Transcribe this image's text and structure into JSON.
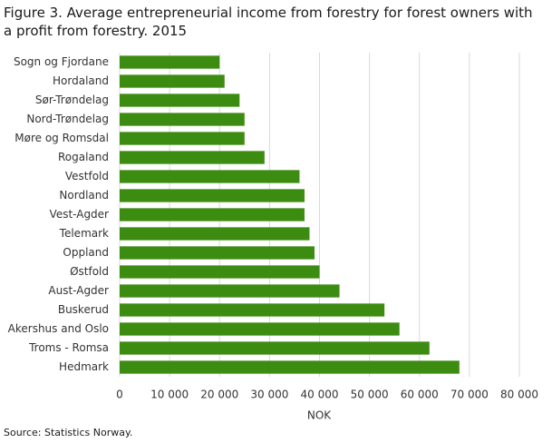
{
  "chart_data": {
    "type": "barh",
    "title": "Figure 3. Average entrepreneurial income from forestry for forest owners with a profit from forestry. 2015",
    "categories": [
      "Sogn og Fjordane",
      "Hordaland",
      "Sør-Trøndelag",
      "Nord-Trøndelag",
      "Møre og Romsdal",
      "Rogaland",
      "Vestfold",
      "Nordland",
      "Vest-Agder",
      "Telemark",
      "Oppland",
      "Østfold",
      "Aust-Agder",
      "Buskerud",
      "Akershus and Oslo",
      "Troms - Romsa",
      "Hedmark"
    ],
    "values": [
      20000,
      21000,
      24000,
      25000,
      25000,
      29000,
      36000,
      37000,
      37000,
      38000,
      39000,
      40000,
      44000,
      53000,
      56000,
      62000,
      68000
    ],
    "color": "#3d8c12",
    "xlim": [
      0,
      80000
    ],
    "xticks": [
      0,
      {
        "value": 10000,
        "label": "10 000"
      },
      {
        "value": 20000,
        "label": "20 000"
      },
      {
        "value": 30000,
        "label": "30 000"
      },
      {
        "value": 40000,
        "label": "40 000"
      },
      {
        "value": 50000,
        "label": "50 000"
      },
      {
        "value": 60000,
        "label": "60 000"
      },
      {
        "value": 70000,
        "label": "70 000"
      },
      {
        "value": 80000,
        "label": "80 000"
      }
    ],
    "xlabel": "NOK",
    "grid": true,
    "source": "Source: Statistics Norway."
  }
}
